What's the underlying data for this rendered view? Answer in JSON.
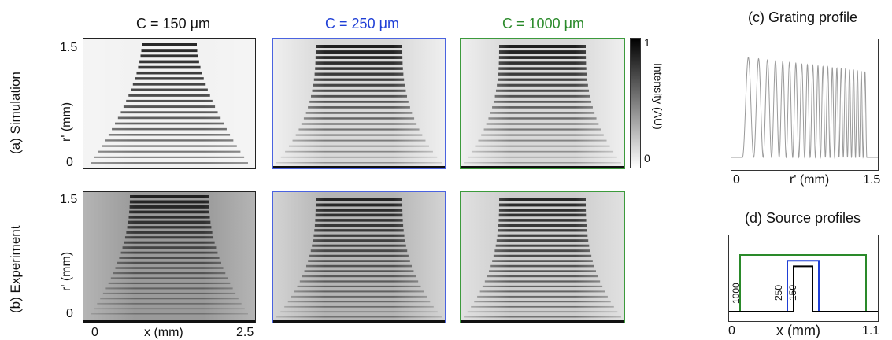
{
  "figure": {
    "columns": [
      {
        "title": "C = 150 μm",
        "color": "#000000"
      },
      {
        "title": "C = 250 μm",
        "color": "#1f3fd6"
      },
      {
        "title": "C = 1000 μm",
        "color": "#2a8a2a"
      }
    ],
    "rows": {
      "a": {
        "label": "(a) Simulation"
      },
      "b": {
        "label": "(b) Experiment"
      }
    },
    "y_axis": {
      "label": "r' (mm)",
      "tick_top": "1.5",
      "tick_bottom": "0"
    },
    "x_axis": {
      "label": "x (mm)",
      "tick_left": "0",
      "tick_right": "2.5"
    },
    "colorbar": {
      "label": "Intensity (AU)",
      "tick_max": "1",
      "tick_min": "0"
    },
    "panel_c": {
      "title": "(c) Grating profile",
      "xlabel": "r' (mm)",
      "tick_left": "0",
      "tick_right": "1.5"
    },
    "panel_d": {
      "title": "(d) Source profiles",
      "xlabel": "x (mm)",
      "tick_left": "0",
      "tick_right": "1.1",
      "profile_labels": [
        "1000",
        "250",
        "150"
      ]
    }
  },
  "chart_data": [
    {
      "type": "line",
      "title": "(c) Grating profile",
      "xlabel": "r' (mm)",
      "xlim": [
        0,
        1.5
      ],
      "series": [
        {
          "values_description_free": true,
          "color": "#9a9a9a"
        }
      ]
    },
    {
      "type": "line",
      "title": "(d) Source profiles",
      "xlabel": "x (mm)",
      "xlim": [
        0,
        1.1
      ],
      "series": [
        {
          "name": "1000",
          "color": "#2a8a2a",
          "width": 1.0,
          "height": 1.0
        },
        {
          "name": "250",
          "color": "#1f3fd6",
          "width": 0.25,
          "height": 0.9
        },
        {
          "name": "150",
          "color": "#000000",
          "width": 0.15,
          "height": 0.8
        }
      ]
    }
  ]
}
